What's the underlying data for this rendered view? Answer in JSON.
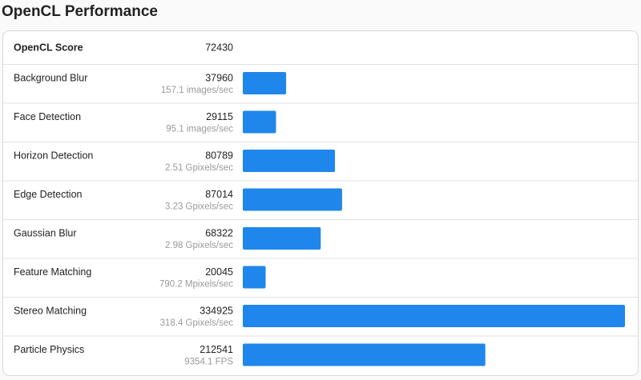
{
  "chart_data": {
    "type": "bar",
    "title": "OpenCL Performance",
    "score_label": "OpenCL Score",
    "score": 72430,
    "categories": [
      "Background Blur",
      "Face Detection",
      "Horizon Detection",
      "Edge Detection",
      "Gaussian Blur",
      "Feature Matching",
      "Stereo Matching",
      "Particle Physics"
    ],
    "values": [
      37960,
      29115,
      80789,
      87014,
      68322,
      20045,
      334925,
      212541
    ],
    "throughputs": [
      "157.1 images/sec",
      "95.1 images/sec",
      "2.51 Gpixels/sec",
      "3.23 Gpixels/sec",
      "2.98 Gpixels/sec",
      "790.2 Mpixels/sec",
      "318.4 Gpixels/sec",
      "9354.1 FPS"
    ],
    "color": "#1f86ec",
    "xlim": [
      0,
      334925
    ]
  }
}
